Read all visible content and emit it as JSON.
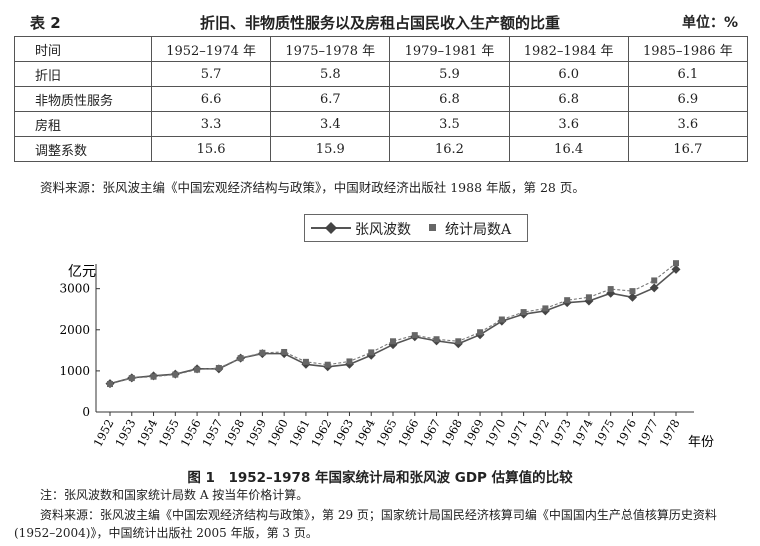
{
  "table": {
    "label": "表 2",
    "title": "折旧、非物质性服务以及房租占国民收入生产额的比重",
    "unit": "单位：%",
    "headers": [
      "时间",
      "1952–1974 年",
      "1975–1978 年",
      "1979–1981 年",
      "1982–1984 年",
      "1985–1986 年"
    ],
    "rows": [
      [
        "折旧",
        "5.7",
        "5.8",
        "5.9",
        "6.0",
        "6.1"
      ],
      [
        "非物质性服务",
        "6.6",
        "6.7",
        "6.8",
        "6.8",
        "6.9"
      ],
      [
        "房租",
        "3.3",
        "3.4",
        "3.5",
        "3.6",
        "3.6"
      ],
      [
        "调整系数",
        "15.6",
        "15.9",
        "16.2",
        "16.4",
        "16.7"
      ]
    ],
    "source": "资料来源：张风波主编《中国宏观经济结构与政策》，中国财政经济出版社 1988 年版，第 28 页。"
  },
  "figure": {
    "caption": "图 1　1952–1978 年国家统计局和张风波 GDP 估算值的比较",
    "note": "注：张风波数和国家统计局数 A 按当年价格计算。",
    "source_line1": "资料来源：张风波主编《中国宏观经济结构与政策》，第 29 页；国家统计局国民经济核算司编《中国国内生产总值核算历史资料",
    "source_line2": "(1952–2004)》，中国统计出版社 2005 年版，第 3 页。"
  },
  "chart_data": {
    "type": "line",
    "title": "图 1　1952–1978 年国家统计局和张风波 GDP 估算值的比较",
    "ylabel": "亿元",
    "xlabel": "年份",
    "ylim": [
      0,
      3600
    ],
    "yticks": [
      0,
      1000,
      2000,
      3000
    ],
    "legend_position": "top-center",
    "grid": false,
    "x": [
      "1952",
      "1953",
      "1954",
      "1955",
      "1956",
      "1957",
      "1958",
      "1959",
      "1960",
      "1961",
      "1962",
      "1963",
      "1964",
      "1965",
      "1966",
      "1967",
      "1968",
      "1969",
      "1970",
      "1971",
      "1972",
      "1973",
      "1974",
      "1975",
      "1976",
      "1977",
      "1978"
    ],
    "series": [
      {
        "name": "张风波数",
        "marker": "diamond",
        "color": "#555555",
        "values": [
          690,
          830,
          880,
          920,
          1050,
          1050,
          1310,
          1420,
          1420,
          1160,
          1100,
          1160,
          1380,
          1640,
          1830,
          1730,
          1660,
          1880,
          2210,
          2380,
          2460,
          2660,
          2700,
          2890,
          2790,
          3020,
          3470
        ]
      },
      {
        "name": "统计局数A",
        "marker": "square",
        "color": "#777777",
        "values": [
          680,
          825,
          860,
          910,
          1030,
          1070,
          1310,
          1440,
          1460,
          1220,
          1150,
          1230,
          1450,
          1720,
          1870,
          1770,
          1720,
          1940,
          2250,
          2430,
          2520,
          2720,
          2790,
          2990,
          2940,
          3200,
          3620
        ]
      }
    ]
  }
}
